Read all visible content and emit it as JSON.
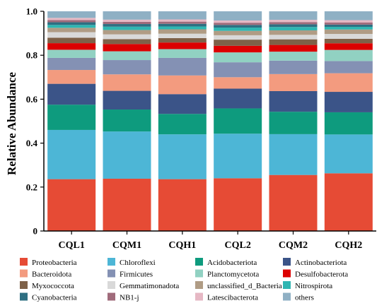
{
  "chart_data": {
    "type": "bar",
    "stacked": true,
    "title": "",
    "xlabel": "",
    "ylabel": "Relative Abundance",
    "ylim": [
      0,
      1.0
    ],
    "yticks": [
      0,
      0.2,
      0.4,
      0.6,
      0.8,
      1.0
    ],
    "ytick_labels": [
      "0",
      "0.2",
      "0.4",
      "0.6",
      "0.8",
      "1.0"
    ],
    "grid": false,
    "legend_position": "bottom",
    "categories": [
      "CQL1",
      "CQM1",
      "CQH1",
      "CQL2",
      "CQM2",
      "CQH2"
    ],
    "series": [
      {
        "name": "Proteobacteria",
        "color": "#e64b35",
        "values": [
          0.236,
          0.238,
          0.236,
          0.24,
          0.25,
          0.26
        ]
      },
      {
        "name": "Chloroflexi",
        "color": "#4db6d6",
        "values": [
          0.224,
          0.215,
          0.204,
          0.203,
          0.182,
          0.175
        ]
      },
      {
        "name": "Acidobacteriota",
        "color": "#0e9b7e",
        "values": [
          0.115,
          0.1,
          0.093,
          0.115,
          0.1,
          0.1
        ]
      },
      {
        "name": "Actinobacteriota",
        "color": "#3b5488",
        "values": [
          0.095,
          0.085,
          0.09,
          0.09,
          0.092,
          0.092
        ]
      },
      {
        "name": "Bacteroidota",
        "color": "#f39b7f",
        "values": [
          0.063,
          0.075,
          0.085,
          0.052,
          0.076,
          0.084
        ]
      },
      {
        "name": "Firmicutes",
        "color": "#8491b4",
        "values": [
          0.055,
          0.065,
          0.08,
          0.068,
          0.06,
          0.055
        ]
      },
      {
        "name": "Planctomycetota",
        "color": "#91d1c2",
        "values": [
          0.037,
          0.04,
          0.04,
          0.045,
          0.04,
          0.05
        ]
      },
      {
        "name": "Desulfobacterota",
        "color": "#dc0000",
        "values": [
          0.03,
          0.033,
          0.03,
          0.03,
          0.03,
          0.03
        ]
      },
      {
        "name": "Myxococcota",
        "color": "#7e6148",
        "values": [
          0.025,
          0.022,
          0.02,
          0.028,
          0.025,
          0.02
        ]
      },
      {
        "name": "Gemmatimonadota",
        "color": "#d9d9d9",
        "values": [
          0.025,
          0.022,
          0.02,
          0.02,
          0.02,
          0.022
        ]
      },
      {
        "name": "unclassified_d_Bacteria",
        "color": "#b09c85",
        "values": [
          0.02,
          0.02,
          0.02,
          0.02,
          0.02,
          0.02
        ]
      },
      {
        "name": "Nitrospirota",
        "color": "#2fb6b2",
        "values": [
          0.013,
          0.015,
          0.013,
          0.015,
          0.015,
          0.012
        ]
      },
      {
        "name": "Cyanobacteria",
        "color": "#2e6f82",
        "values": [
          0.012,
          0.012,
          0.012,
          0.012,
          0.012,
          0.01
        ]
      },
      {
        "name": "NB1-j",
        "color": "#a06b7b",
        "values": [
          0.01,
          0.01,
          0.01,
          0.01,
          0.01,
          0.01
        ]
      },
      {
        "name": "Latescibacterota",
        "color": "#e6b8c4",
        "values": [
          0.01,
          0.01,
          0.01,
          0.01,
          0.01,
          0.01
        ]
      },
      {
        "name": "others",
        "color": "#8fb0c4",
        "values": [
          0.03,
          0.038,
          0.037,
          0.042,
          0.038,
          0.04
        ]
      }
    ]
  }
}
